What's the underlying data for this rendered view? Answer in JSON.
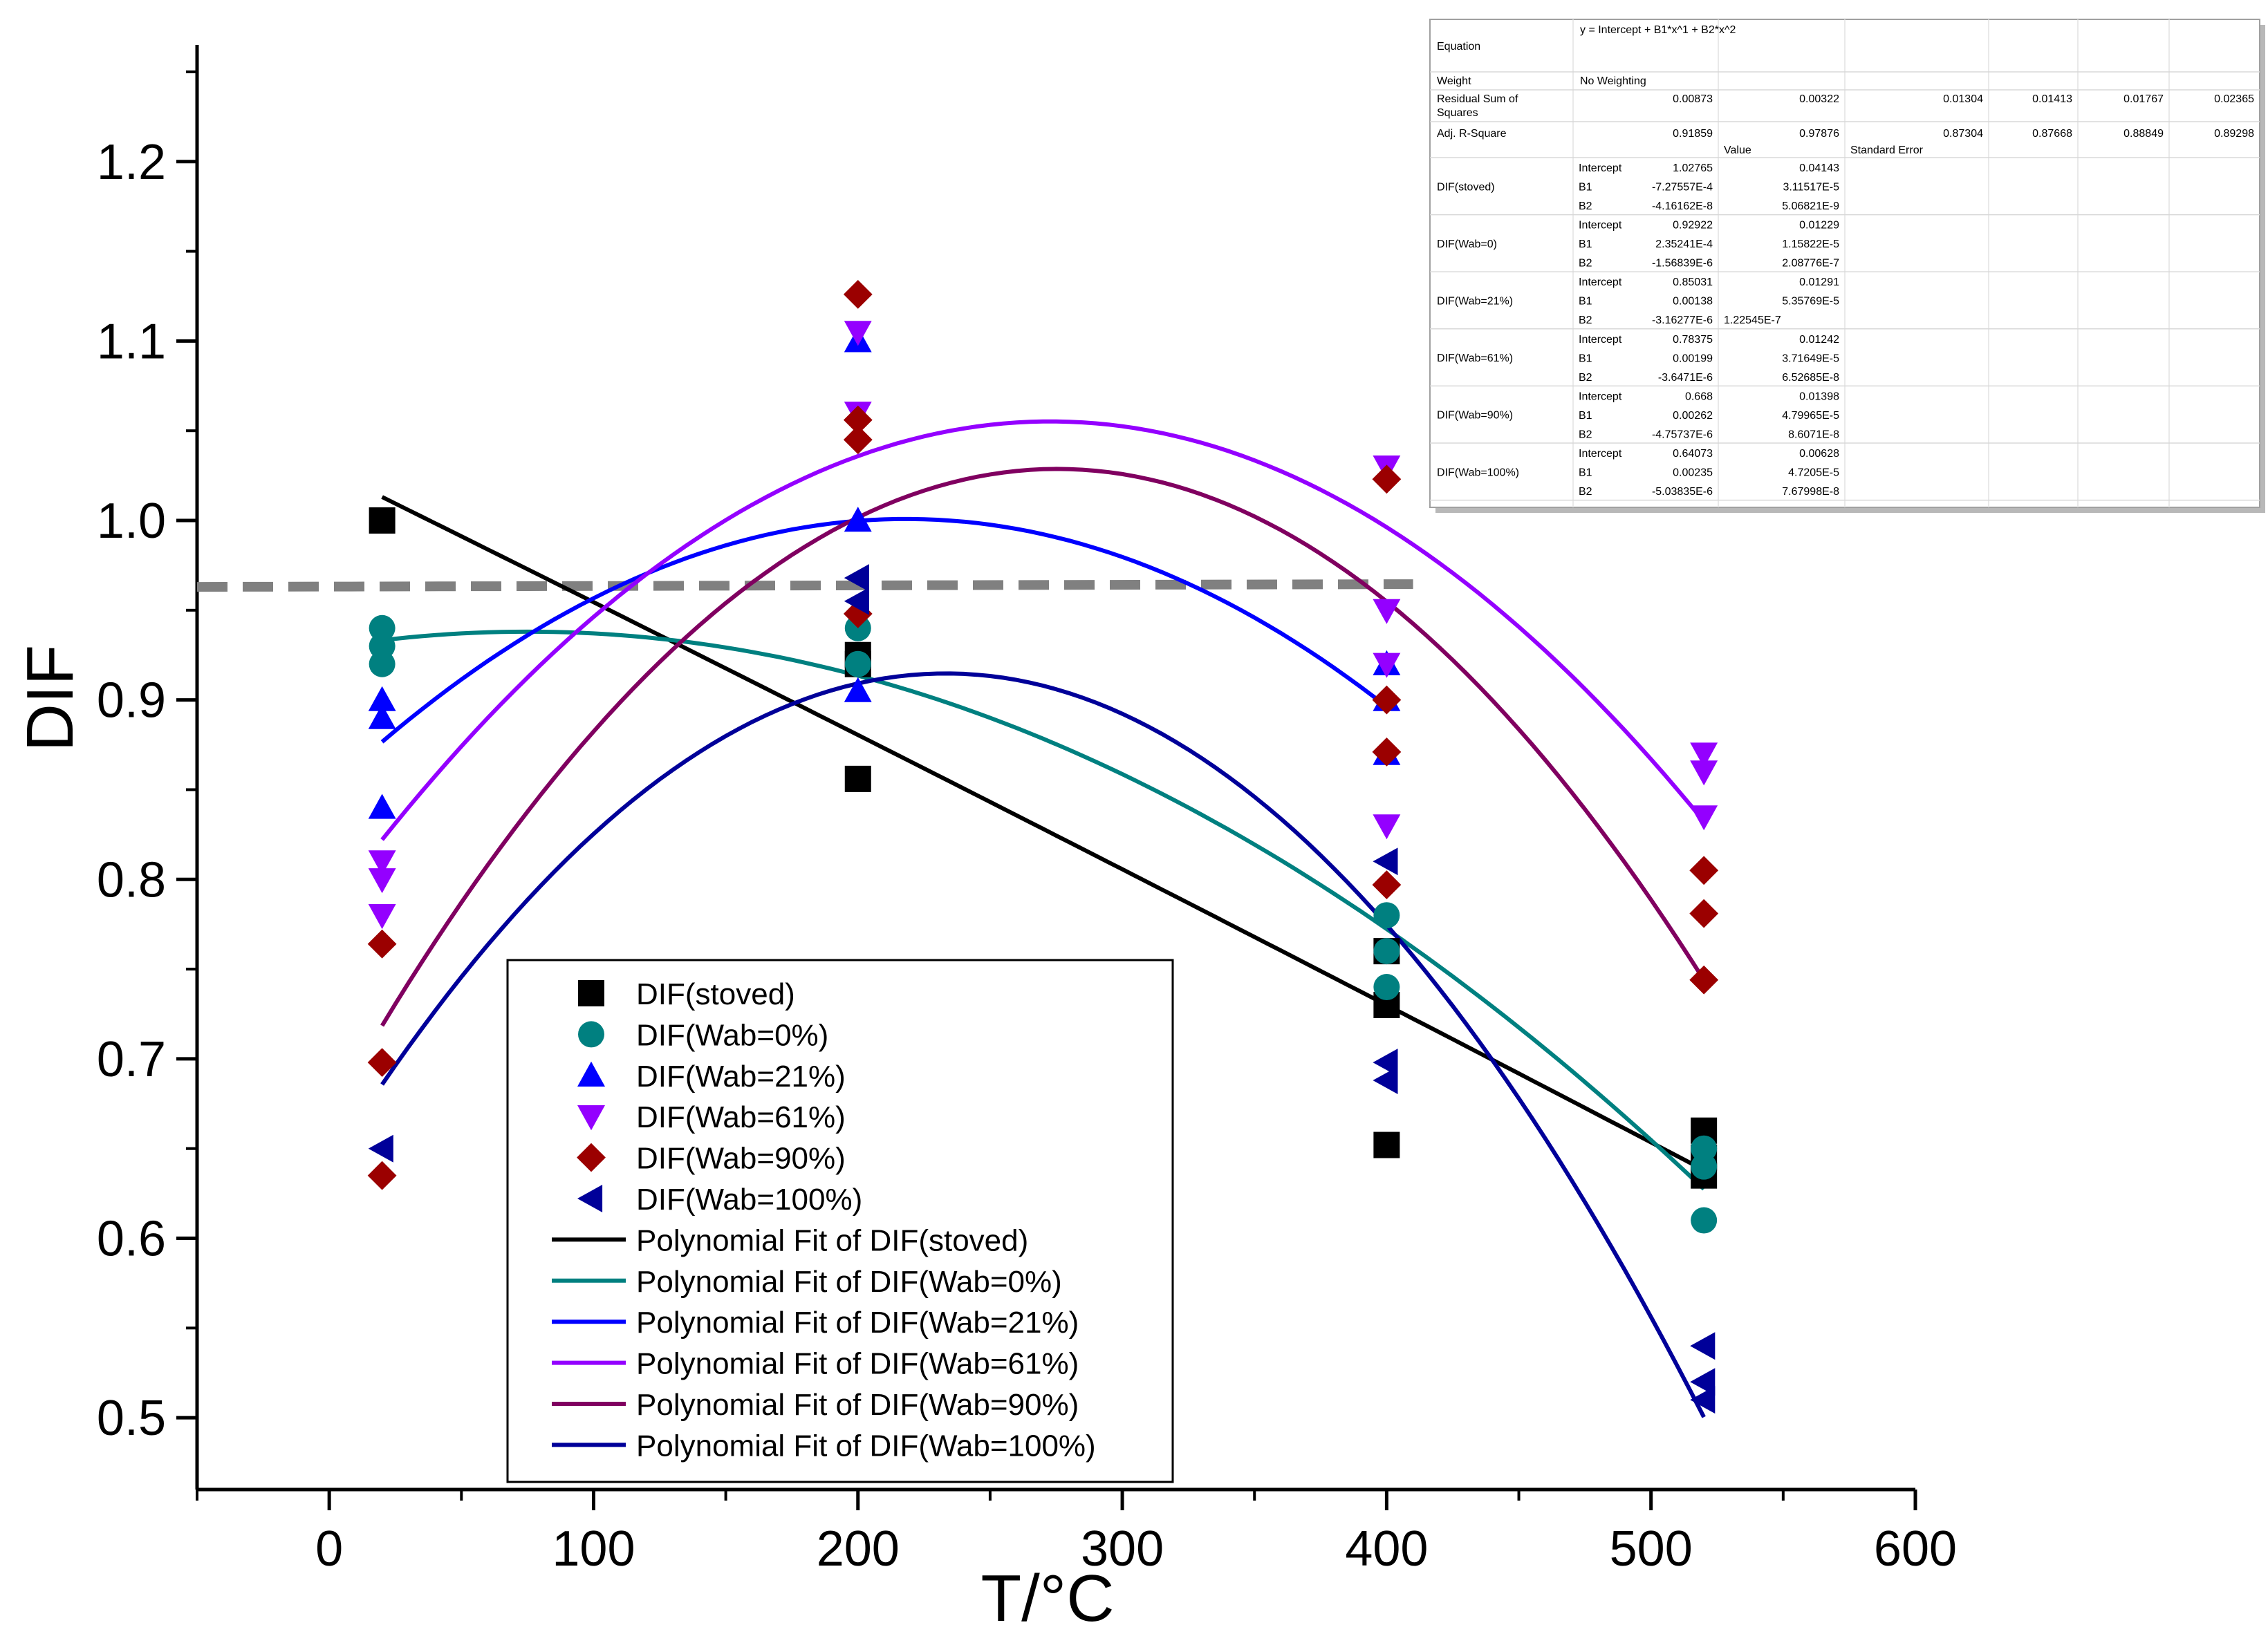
{
  "chart_data": {
    "type": "scatter",
    "title": "",
    "xlabel": "T/°C",
    "ylabel": "DIF",
    "xlim": [
      -50,
      600
    ],
    "ylim": [
      0.46,
      1.265
    ],
    "xticks": [
      0,
      100,
      200,
      300,
      400,
      500,
      600
    ],
    "xtick_labels": [
      "0",
      "100",
      "200",
      "300",
      "400",
      "500",
      "600"
    ],
    "yticks": [
      0.5,
      0.6,
      0.7,
      0.8,
      0.9,
      1.0,
      1.1,
      1.2
    ],
    "ytick_labels": [
      "0.5",
      "0.6",
      "0.7",
      "0.8",
      "0.9",
      "1.0",
      "1.1",
      "1.2"
    ],
    "grid": false,
    "legend_position": "bottom-left",
    "reference_line": {
      "y": 0.963,
      "x_range": [
        -50,
        410
      ],
      "style": "dashed",
      "color": "#808080"
    },
    "series": [
      {
        "name": "DIF(stoved)",
        "marker": "square",
        "color": "#000000",
        "points": [
          [
            20,
            1.0
          ],
          [
            200,
            0.925
          ],
          [
            200,
            0.92
          ],
          [
            200,
            0.856
          ],
          [
            400,
            0.76
          ],
          [
            400,
            0.73
          ],
          [
            400,
            0.652
          ],
          [
            520,
            0.66
          ],
          [
            520,
            0.645
          ],
          [
            520,
            0.635
          ]
        ]
      },
      {
        "name": "DIF(Wab=0%)",
        "marker": "circle",
        "color": "#008080",
        "points": [
          [
            20,
            0.94
          ],
          [
            20,
            0.93
          ],
          [
            20,
            0.92
          ],
          [
            200,
            0.94
          ],
          [
            200,
            0.92
          ],
          [
            400,
            0.78
          ],
          [
            400,
            0.76
          ],
          [
            400,
            0.74
          ],
          [
            520,
            0.65
          ],
          [
            520,
            0.64
          ],
          [
            520,
            0.61
          ]
        ]
      },
      {
        "name": "DIF(Wab=21%)",
        "marker": "triangle-up",
        "color": "#0000ff",
        "points": [
          [
            20,
            0.9
          ],
          [
            20,
            0.89
          ],
          [
            20,
            0.84
          ],
          [
            200,
            1.1
          ],
          [
            200,
            1.0
          ],
          [
            200,
            0.905
          ],
          [
            400,
            0.92
          ],
          [
            400,
            0.9
          ],
          [
            400,
            0.87
          ]
        ]
      },
      {
        "name": "DIF(Wab=61%)",
        "marker": "triangle-down",
        "color": "#9400ff",
        "points": [
          [
            20,
            0.81
          ],
          [
            20,
            0.8
          ],
          [
            20,
            0.78
          ],
          [
            200,
            1.105
          ],
          [
            200,
            1.06
          ],
          [
            400,
            1.03
          ],
          [
            400,
            0.95
          ],
          [
            400,
            0.92
          ],
          [
            400,
            0.83
          ],
          [
            520,
            0.87
          ],
          [
            520,
            0.86
          ],
          [
            520,
            0.835
          ]
        ]
      },
      {
        "name": "DIF(Wab=90%)",
        "marker": "diamond",
        "color": "#9b0000",
        "points": [
          [
            20,
            0.764
          ],
          [
            20,
            0.698
          ],
          [
            20,
            0.635
          ],
          [
            200,
            1.126
          ],
          [
            200,
            1.056
          ],
          [
            200,
            1.045
          ],
          [
            200,
            0.948
          ],
          [
            400,
            1.023
          ],
          [
            400,
            0.9
          ],
          [
            400,
            0.871
          ],
          [
            400,
            0.797
          ],
          [
            520,
            0.805
          ],
          [
            520,
            0.781
          ],
          [
            520,
            0.744
          ]
        ]
      },
      {
        "name": "DIF(Wab=100%)",
        "marker": "triangle-left",
        "color": "#000099",
        "points": [
          [
            20,
            0.65
          ],
          [
            200,
            0.968
          ],
          [
            200,
            0.955
          ],
          [
            400,
            0.81
          ],
          [
            400,
            0.698
          ],
          [
            400,
            0.688
          ],
          [
            520,
            0.54
          ],
          [
            520,
            0.52
          ],
          [
            520,
            0.51
          ]
        ]
      }
    ],
    "fits": [
      {
        "name": "Polynomial Fit of DIF(stoved)",
        "color": "#000000",
        "intercept": 1.02765,
        "b1": -0.000727557,
        "b2": -4.16162e-08,
        "x_range": [
          20,
          520
        ]
      },
      {
        "name": "Polynomial Fit of DIF(Wab=0%)",
        "color": "#008080",
        "intercept": 0.92922,
        "b1": 0.000235241,
        "b2": -1.56839e-06,
        "x_range": [
          20,
          520
        ]
      },
      {
        "name": "Polynomial Fit of DIF(Wab=21%)",
        "color": "#0000ff",
        "intercept": 0.85031,
        "b1": 0.00138,
        "b2": -3.16277e-06,
        "x_range": [
          20,
          400
        ]
      },
      {
        "name": "Polynomial Fit of DIF(Wab=61%)",
        "color": "#9400ff",
        "intercept": 0.78375,
        "b1": 0.00199,
        "b2": -3.6471e-06,
        "x_range": [
          20,
          520
        ]
      },
      {
        "name": "Polynomial Fit of DIF(Wab=90%)",
        "color": "#800060",
        "intercept": 0.668,
        "b1": 0.00262,
        "b2": -4.75737e-06,
        "x_range": [
          20,
          520
        ]
      },
      {
        "name": "Polynomial Fit of DIF(Wab=100%)",
        "color": "#000099",
        "intercept": 0.64073,
        "b1": 0.00235,
        "b2": -5.03835e-06,
        "x_range": [
          20,
          520
        ]
      }
    ],
    "fit_table": {
      "equation_label": "Equation",
      "equation": "y = Intercept + B1*x^1 + B2*x^2",
      "weight_label": "Weight",
      "weight": "No Weighting",
      "rss_label_1": "Residual Sum of",
      "rss_label_2": "Squares",
      "rss_values": [
        "0.00873",
        "0.00322",
        "0.01304",
        "0.01413",
        "0.01767",
        "0.02365"
      ],
      "adjr_label": "Adj. R-Square",
      "adjr_values": [
        "0.91859",
        "0.97876",
        "0.87304",
        "0.87668",
        "0.88849",
        "0.89298"
      ],
      "value_header": "Value",
      "se_header": "Standard Error",
      "rows": [
        {
          "group": "DIF(stoved)",
          "params": [
            [
              "Intercept",
              "1.02765",
              "0.04143"
            ],
            [
              "B1",
              "-7.27557E-4",
              "3.11517E-5"
            ],
            [
              "B2",
              "-4.16162E-8",
              "5.06821E-9"
            ]
          ]
        },
        {
          "group": "DIF(Wab=0)",
          "params": [
            [
              "Intercept",
              "0.92922",
              "0.01229"
            ],
            [
              "B1",
              "2.35241E-4",
              "1.15822E-5"
            ],
            [
              "B2",
              "-1.56839E-6",
              "2.08776E-7"
            ]
          ]
        },
        {
          "group": "DIF(Wab=21%)",
          "params": [
            [
              "Intercept",
              "0.85031",
              "0.01291"
            ],
            [
              "B1",
              "0.00138",
              "5.35769E-5"
            ],
            [
              "B2",
              "-3.16277E-6",
              "1.22545E-7"
            ]
          ]
        },
        {
          "group": "DIF(Wab=61%)",
          "params": [
            [
              "Intercept",
              "0.78375",
              "0.01242"
            ],
            [
              "B1",
              "0.00199",
              "3.71649E-5"
            ],
            [
              "B2",
              "-3.6471E-6",
              "6.52685E-8"
            ]
          ]
        },
        {
          "group": "DIF(Wab=90%)",
          "params": [
            [
              "Intercept",
              "0.668",
              "0.01398"
            ],
            [
              "B1",
              "0.00262",
              "4.79965E-5"
            ],
            [
              "B2",
              "-4.75737E-6",
              "8.6071E-8"
            ]
          ]
        },
        {
          "group": "DIF(Wab=100%)",
          "params": [
            [
              "Intercept",
              "0.64073",
              "0.00628"
            ],
            [
              "B1",
              "0.00235",
              "4.7205E-5"
            ],
            [
              "B2",
              "-5.03835E-6",
              "7.67998E-8"
            ]
          ]
        }
      ]
    }
  }
}
